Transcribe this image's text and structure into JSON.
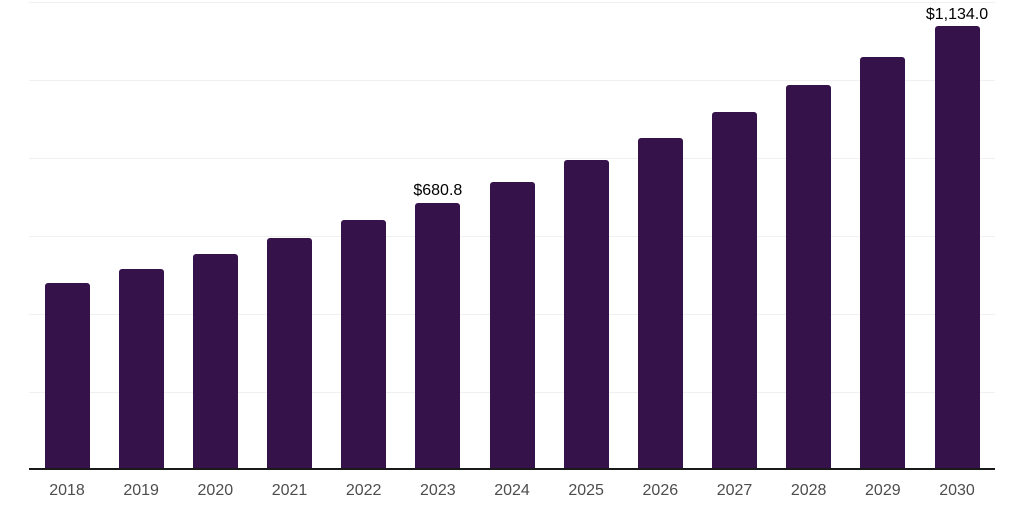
{
  "chart_data": {
    "type": "bar",
    "title": "",
    "xlabel": "",
    "ylabel": "",
    "categories": [
      "2018",
      "2019",
      "2020",
      "2021",
      "2022",
      "2023",
      "2024",
      "2025",
      "2026",
      "2027",
      "2028",
      "2029",
      "2030"
    ],
    "values": [
      475,
      510,
      550,
      591,
      636,
      680.8,
      734,
      789,
      847,
      913,
      982,
      1055,
      1134
    ],
    "data_labels": {
      "2023": "$680.8",
      "2030": "$1,134.0"
    },
    "ylim": [
      0,
      1200
    ],
    "gridline_step": 200,
    "grid": true,
    "legend": false,
    "y_axis_labels_visible": false,
    "colors": {
      "bar": "#36124b",
      "axis_line": "#1a1a1a",
      "gridline": "#f0f0f0",
      "tick_label": "#4d4d4d",
      "data_label": "#000000",
      "background": "#ffffff"
    }
  }
}
